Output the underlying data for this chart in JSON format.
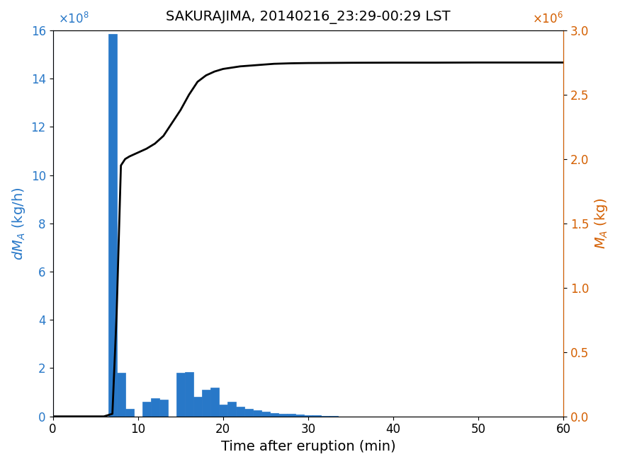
{
  "title": "SAKURAJIMA, 20140216_23:29-00:29 LST",
  "xlabel": "Time after eruption (min)",
  "ylabel_left": "dM_A (kg/h)",
  "ylabel_right": "M_A (kg)",
  "bar_color": "#2878C8",
  "line_color": "#000000",
  "left_axis_color": "#2878C8",
  "right_axis_color": "#D45F00",
  "xlim": [
    0,
    60
  ],
  "ylim_left": [
    0,
    1600000000.0
  ],
  "ylim_right": [
    0,
    3000000.0
  ],
  "bar_centers": [
    7,
    8,
    9,
    11,
    12,
    13,
    15,
    16,
    17,
    18,
    19,
    20,
    21,
    22,
    23,
    24,
    25,
    26,
    27,
    28,
    29,
    30,
    31,
    32,
    33
  ],
  "bar_heights": [
    1585000000.0,
    180000000.0,
    30000000.0,
    60000000.0,
    75000000.0,
    70000000.0,
    180000000.0,
    185000000.0,
    80000000.0,
    110000000.0,
    120000000.0,
    50000000.0,
    60000000.0,
    40000000.0,
    30000000.0,
    25000000.0,
    20000000.0,
    15000000.0,
    12000000.0,
    10000000.0,
    7000000.0,
    5000000.0,
    4000000.0,
    2000000.0,
    1000000.0
  ],
  "bar_width": 1.0,
  "line_x": [
    0,
    1,
    2,
    3,
    4,
    5,
    6,
    7,
    7.5,
    8,
    8.5,
    9,
    10,
    11,
    12,
    13,
    14,
    15,
    16,
    17,
    18,
    19,
    20,
    21,
    22,
    23,
    24,
    25,
    26,
    27,
    28,
    29,
    30,
    35,
    40,
    45,
    50,
    55,
    60
  ],
  "line_y": [
    0,
    0,
    0,
    0,
    0,
    0,
    0,
    20000.0,
    800000.0,
    1950000.0,
    2000000.0,
    2020000.0,
    2050000.0,
    2080000.0,
    2120000.0,
    2180000.0,
    2280000.0,
    2380000.0,
    2500000.0,
    2600000.0,
    2650000.0,
    2680000.0,
    2700000.0,
    2710000.0,
    2720000.0,
    2725000.0,
    2730000.0,
    2735000.0,
    2740000.0,
    2742000.0,
    2744000.0,
    2745000.0,
    2746000.0,
    2748000.0,
    2749000.0,
    2749000.0,
    2750000.0,
    2750000.0,
    2750000.0
  ]
}
